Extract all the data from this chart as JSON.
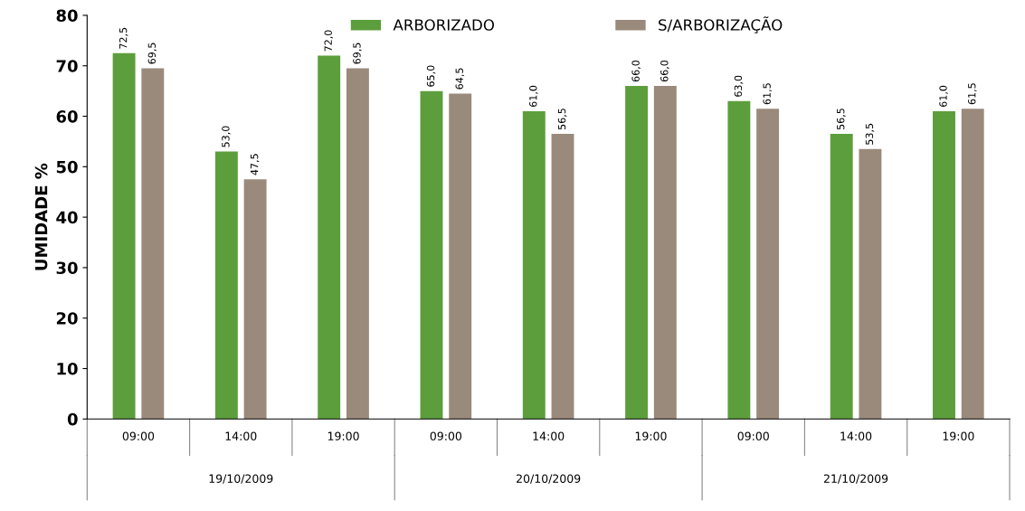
{
  "chart_data": {
    "type": "bar",
    "ylabel": "UMIDADE %",
    "categories": [
      "09:00",
      "14:00",
      "19:00",
      "09:00",
      "14:00",
      "19:00",
      "09:00",
      "14:00",
      "19:00"
    ],
    "annotations": [
      "19/10/2009",
      "20/10/2009",
      "21/10/2009"
    ],
    "series": [
      {
        "name": "ARBORIZADO",
        "color": "#5c9e3c",
        "values": [
          72.5,
          53.0,
          72.0,
          65.0,
          61.0,
          66.0,
          63.0,
          56.5,
          61.0
        ],
        "value_labels": [
          "72,5",
          "53,0",
          "72,0",
          "65,0",
          "61,0",
          "66,0",
          "63,0",
          "56,5",
          "61,0"
        ]
      },
      {
        "name": "S/ARBORIZAÇÃO",
        "color": "#9a8a7c",
        "values": [
          69.5,
          47.5,
          69.5,
          64.5,
          56.5,
          66.0,
          61.5,
          53.5,
          61.5
        ],
        "value_labels": [
          "69,5",
          "47,5",
          "69,5",
          "64,5",
          "56,5",
          "66,0",
          "61,5",
          "53,5",
          "61,5"
        ]
      }
    ],
    "ylim": [
      0,
      80
    ],
    "yticks": [
      0,
      10,
      20,
      30,
      40,
      50,
      60,
      70,
      80
    ],
    "legend": "top",
    "grid": false
  }
}
